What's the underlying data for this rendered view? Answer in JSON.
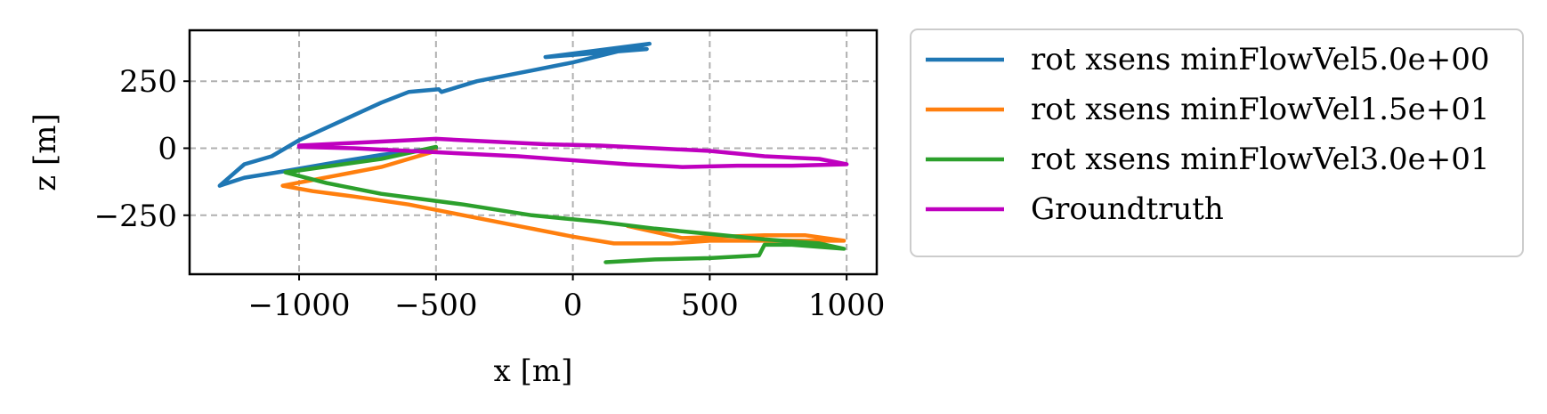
{
  "chart_data": {
    "type": "line",
    "xlabel": "x [m]",
    "ylabel": "z [m]",
    "xlim": [
      -1400,
      1110
    ],
    "ylim": [
      -470,
      440
    ],
    "xticks": [
      -1000,
      -500,
      0,
      500,
      1000
    ],
    "xtick_labels": [
      "−1000",
      "−500",
      "0",
      "500",
      "1000"
    ],
    "yticks": [
      -250,
      0,
      250
    ],
    "ytick_labels": [
      "−250",
      "0",
      "250"
    ],
    "grid": true,
    "legend_placement": "outside-right",
    "series": [
      {
        "name": "rot xsens minFlowVel5.0e+00",
        "color": "#1f77b4",
        "points": [
          [
            270,
            370
          ],
          [
            -100,
            340
          ],
          [
            280,
            390
          ],
          [
            0,
            320
          ],
          [
            -150,
            290
          ],
          [
            -350,
            250
          ],
          [
            -480,
            210
          ],
          [
            -490,
            220
          ],
          [
            -600,
            210
          ],
          [
            -700,
            170
          ],
          [
            -850,
            100
          ],
          [
            -1000,
            30
          ],
          [
            -1100,
            -30
          ],
          [
            -1200,
            -60
          ],
          [
            -1290,
            -140
          ],
          [
            -1200,
            -110
          ],
          [
            -1050,
            -85
          ],
          [
            -850,
            -50
          ],
          [
            -700,
            -25
          ],
          [
            -500,
            0
          ]
        ]
      },
      {
        "name": "rot xsens minFlowVel1.5e+01",
        "color": "#ff7f0e",
        "points": [
          [
            -500,
            -10
          ],
          [
            -700,
            -70
          ],
          [
            -1060,
            -140
          ],
          [
            -950,
            -160
          ],
          [
            -800,
            -180
          ],
          [
            -600,
            -210
          ],
          [
            -400,
            -250
          ],
          [
            -200,
            -290
          ],
          [
            0,
            -330
          ],
          [
            150,
            -355
          ],
          [
            360,
            -355
          ],
          [
            500,
            -345
          ],
          [
            700,
            -345
          ],
          [
            850,
            -345
          ],
          [
            990,
            -345
          ],
          [
            850,
            -325
          ],
          [
            700,
            -325
          ],
          [
            400,
            -335
          ],
          [
            200,
            -290
          ]
        ]
      },
      {
        "name": "rot xsens minFlowVel3.0e+01",
        "color": "#2ca02c",
        "points": [
          [
            -500,
            5
          ],
          [
            -700,
            -40
          ],
          [
            -1050,
            -90
          ],
          [
            -900,
            -130
          ],
          [
            -700,
            -170
          ],
          [
            -400,
            -210
          ],
          [
            -150,
            -250
          ],
          [
            100,
            -275
          ],
          [
            300,
            -300
          ],
          [
            500,
            -320
          ],
          [
            700,
            -340
          ],
          [
            900,
            -355
          ],
          [
            990,
            -375
          ],
          [
            800,
            -360
          ],
          [
            700,
            -360
          ],
          [
            680,
            -400
          ],
          [
            500,
            -410
          ],
          [
            300,
            -415
          ],
          [
            120,
            -425
          ]
        ]
      },
      {
        "name": "Groundtruth",
        "color": "#bf00bf",
        "points": [
          [
            -1000,
            10
          ],
          [
            -800,
            20
          ],
          [
            -600,
            30
          ],
          [
            -500,
            35
          ],
          [
            -300,
            25
          ],
          [
            -100,
            15
          ],
          [
            100,
            10
          ],
          [
            300,
            0
          ],
          [
            500,
            -10
          ],
          [
            700,
            -30
          ],
          [
            900,
            -40
          ],
          [
            1000,
            -60
          ],
          [
            800,
            -65
          ],
          [
            600,
            -65
          ],
          [
            400,
            -70
          ],
          [
            200,
            -60
          ],
          [
            0,
            -45
          ],
          [
            -200,
            -30
          ],
          [
            -400,
            -20
          ],
          [
            -600,
            -10
          ],
          [
            -800,
            0
          ],
          [
            -1000,
            5
          ]
        ]
      }
    ]
  }
}
